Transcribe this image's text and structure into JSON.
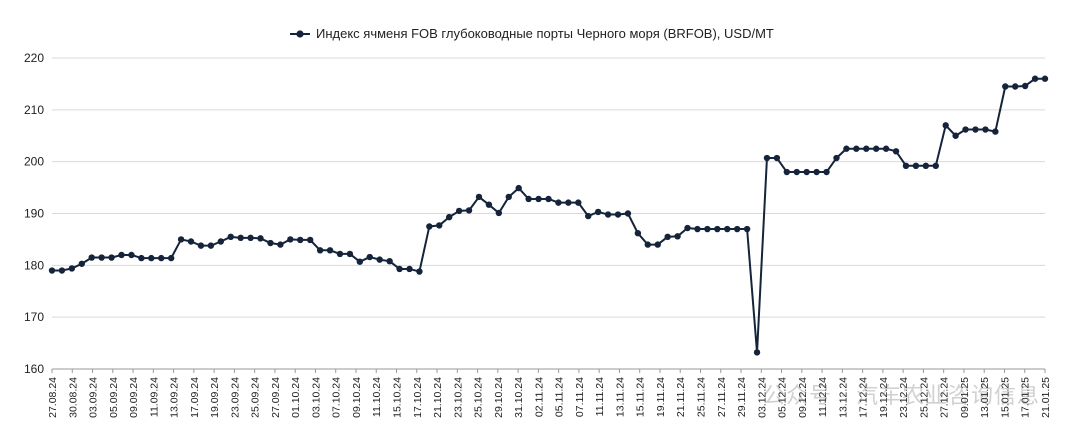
{
  "chart_data": {
    "type": "line",
    "title": "",
    "legend": {
      "position": "top-center",
      "label": "Индекс ячменя FOB глубоководные порты Черного моря (BRFOB), USD/MT"
    },
    "xlabel": "",
    "ylabel": "",
    "ylim": [
      160,
      220
    ],
    "yticks": [
      160,
      170,
      180,
      190,
      200,
      210,
      220
    ],
    "grid": "horizontal",
    "colors": {
      "series": "#15243a",
      "grid": "#d9d9d9",
      "axis": "#9a9a9a"
    },
    "x_tick_labels": [
      "27.08.24",
      "30.08.24",
      "03.09.24",
      "05.09.24",
      "09.09.24",
      "11.09.24",
      "13.09.24",
      "17.09.24",
      "19.09.24",
      "23.09.24",
      "25.09.24",
      "27.09.24",
      "01.10.24",
      "03.10.24",
      "07.10.24",
      "09.10.24",
      "11.10.24",
      "15.10.24",
      "17.10.24",
      "21.10.24",
      "23.10.24",
      "25.10.24",
      "29.10.24",
      "31.10.24",
      "02.11.24",
      "05.11.24",
      "07.11.24",
      "11.11.24",
      "13.11.24",
      "15.11.24",
      "19.11.24",
      "21.11.24",
      "25.11.24",
      "27.11.24",
      "29.11.24",
      "03.12.24",
      "05.12.24",
      "09.12.24",
      "11.12.24",
      "13.12.24",
      "17.12.24",
      "19.12.24",
      "23.12.24",
      "25.12.24",
      "27.12.24",
      "09.01.25",
      "13.01.25",
      "15.01.25",
      "17.01.25",
      "21.01.25"
    ],
    "series": [
      {
        "name": "Индекс ячменя FOB глубоководные порты Черного моря (BRFOB), USD/MT",
        "values": [
          179.0,
          179.0,
          179.4,
          180.3,
          181.5,
          181.5,
          181.5,
          182.0,
          182.0,
          181.4,
          181.4,
          181.4,
          181.4,
          185.0,
          184.6,
          183.8,
          183.8,
          184.6,
          185.5,
          185.3,
          185.3,
          185.2,
          184.3,
          184.0,
          185.0,
          184.9,
          184.9,
          182.9,
          182.9,
          182.2,
          182.2,
          180.7,
          181.6,
          181.1,
          180.8,
          179.3,
          179.3,
          178.8,
          187.5,
          187.7,
          189.3,
          190.5,
          190.6,
          193.2,
          191.7,
          190.1,
          193.2,
          194.9,
          192.8,
          192.8,
          192.8,
          192.1,
          192.1,
          192.1,
          189.5,
          190.3,
          189.8,
          189.8,
          190.0,
          186.2,
          184.0,
          184.0,
          185.5,
          185.6,
          187.2,
          187.0,
          187.0,
          187.0,
          187.0,
          187.0,
          187.0,
          163.2,
          200.7,
          200.7,
          198.0,
          198.0,
          198.0,
          198.0,
          198.0,
          200.7,
          202.5,
          202.5,
          202.5,
          202.5,
          202.5,
          202.0,
          199.2,
          199.2,
          199.2,
          199.2,
          207.0,
          205.0,
          206.2,
          206.2,
          206.2,
          205.8,
          214.5,
          214.5,
          214.6,
          216.0,
          216.0
        ]
      }
    ]
  },
  "watermark": "公众号 · 汽车农业咨询信息"
}
